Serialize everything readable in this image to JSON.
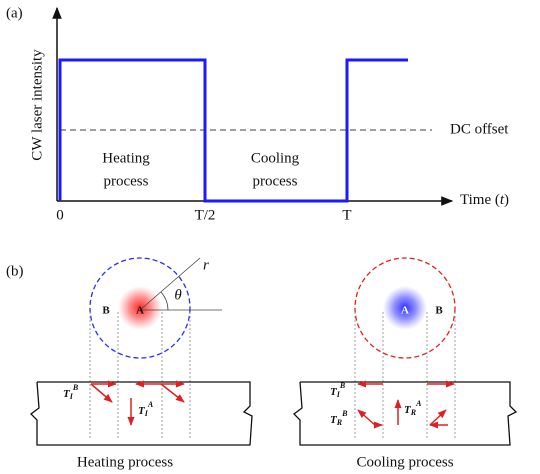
{
  "panel_a": {
    "label": "(a)",
    "y_axis_label": "CW laser intensity",
    "dc_offset": "DC offset",
    "heating": [
      "Heating",
      "process"
    ],
    "cooling": [
      "Cooling",
      "process"
    ],
    "x_ticks": [
      "0",
      "T/2",
      "T"
    ],
    "x_axis_label": {
      "text": "Time (",
      "var": "t",
      "end": ")"
    }
  },
  "panel_b": {
    "label": "(b)",
    "left": {
      "radius": "r",
      "angle": "θ",
      "point_b": "B",
      "point_a": "A",
      "arrows": [
        {
          "base": "T",
          "sub": "I",
          "sup": "B"
        },
        {
          "base": "T",
          "sub": "I",
          "sup": "A"
        }
      ],
      "caption": "Heating process"
    },
    "right": {
      "point_a": "A",
      "point_b": "B",
      "arrows": [
        {
          "base": "T",
          "sub": "I",
          "sup": "B"
        },
        {
          "base": "T",
          "sub": "R",
          "sup": "B"
        },
        {
          "base": "T",
          "sub": "R",
          "sup": "A"
        }
      ],
      "caption": "Cooling process"
    }
  }
}
